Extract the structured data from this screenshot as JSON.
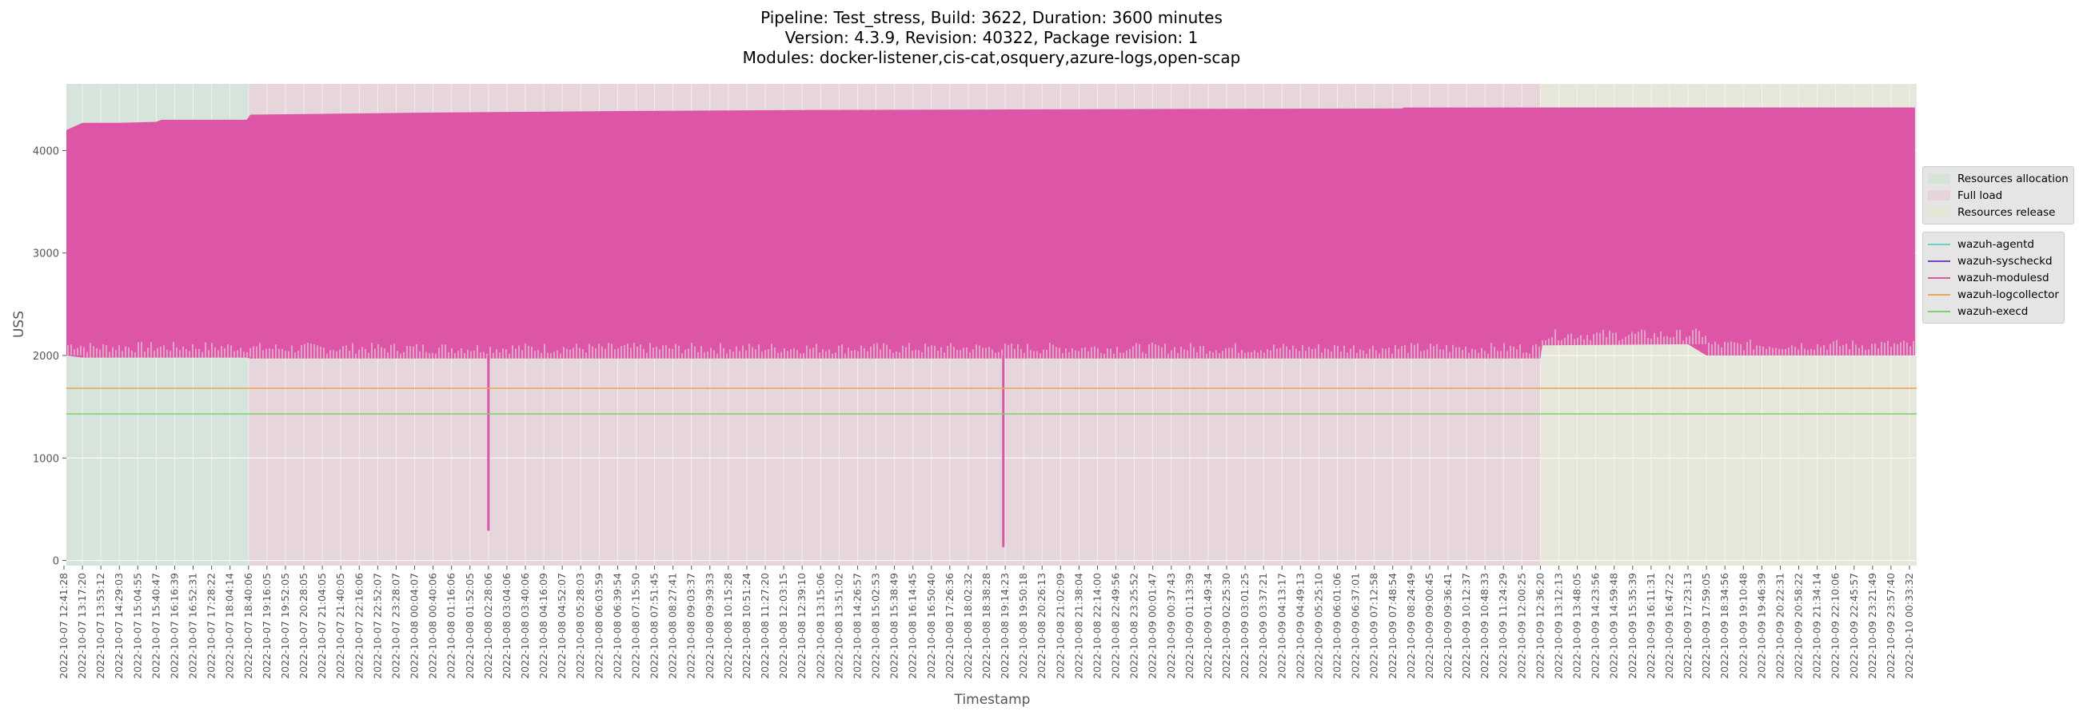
{
  "chart_title": {
    "line1": "Pipeline: Test_stress, Build: 3622, Duration: 3600 minutes",
    "line2": "Version: 4.3.9, Revision: 40322, Package revision: 1",
    "line3": "Modules: docker-listener,cis-cat,osquery,azure-logs,open-scap"
  },
  "colors": {
    "background": "#e5e5e5",
    "grid": "#ffffff",
    "phase_allocation": "#d5e3d9",
    "phase_full_load": "#e5d4d9",
    "phase_release": "#e6e6d8",
    "agentd": "#64d3c8",
    "syscheckd": "#7b3fbf",
    "modulesd": "#dd55a6",
    "logcollector": "#e8a85a",
    "execd": "#7fd06c"
  },
  "legends": {
    "phases": [
      {
        "label": "Resources allocation",
        "color": "#d5e3d9"
      },
      {
        "label": "Full load",
        "color": "#e5d4d9"
      },
      {
        "label": "Resources release",
        "color": "#e6e6d8"
      }
    ],
    "series": [
      {
        "label": "wazuh-agentd",
        "color": "#64d3c8"
      },
      {
        "label": "wazuh-syscheckd",
        "color": "#7b3fbf"
      },
      {
        "label": "wazuh-modulesd",
        "color": "#dd55a6"
      },
      {
        "label": "wazuh-logcollector",
        "color": "#e8a85a"
      },
      {
        "label": "wazuh-execd",
        "color": "#7fd06c"
      }
    ]
  },
  "chart_data": {
    "type": "line",
    "xlabel": "Timestamp",
    "ylabel": "USS",
    "ylim": [
      -50,
      4650
    ],
    "yticks": [
      0,
      1000,
      2000,
      3000,
      4000
    ],
    "grid": true,
    "legend_placement": "right",
    "x_ticks": [
      "2022-10-07 12:41:28",
      "2022-10-07 13:17:20",
      "2022-10-07 13:53:12",
      "2022-10-07 14:29:03",
      "2022-10-07 15:04:55",
      "2022-10-07 15:40:47",
      "2022-10-07 16:16:39",
      "2022-10-07 16:52:31",
      "2022-10-07 17:28:22",
      "2022-10-07 18:04:14",
      "2022-10-07 18:40:06",
      "2022-10-07 19:16:05",
      "2022-10-07 19:52:05",
      "2022-10-07 20:28:05",
      "2022-10-07 21:04:05",
      "2022-10-07 21:40:05",
      "2022-10-07 22:16:06",
      "2022-10-07 22:52:07",
      "2022-10-07 23:28:07",
      "2022-10-08 00:04:07",
      "2022-10-08 00:40:06",
      "2022-10-08 01:16:06",
      "2022-10-08 01:52:05",
      "2022-10-08 02:28:06",
      "2022-10-08 03:04:06",
      "2022-10-08 03:40:06",
      "2022-10-08 04:16:09",
      "2022-10-08 04:52:07",
      "2022-10-08 05:28:03",
      "2022-10-08 06:03:59",
      "2022-10-08 06:39:54",
      "2022-10-08 07:15:50",
      "2022-10-08 07:51:45",
      "2022-10-08 08:27:41",
      "2022-10-08 09:03:37",
      "2022-10-08 09:39:33",
      "2022-10-08 10:15:28",
      "2022-10-08 10:51:24",
      "2022-10-08 11:27:20",
      "2022-10-08 12:03:15",
      "2022-10-08 12:39:10",
      "2022-10-08 13:15:06",
      "2022-10-08 13:51:02",
      "2022-10-08 14:26:57",
      "2022-10-08 15:02:53",
      "2022-10-08 15:38:49",
      "2022-10-08 16:14:45",
      "2022-10-08 16:50:40",
      "2022-10-08 17:26:36",
      "2022-10-08 18:02:32",
      "2022-10-08 18:38:28",
      "2022-10-08 19:14:23",
      "2022-10-08 19:50:18",
      "2022-10-08 20:26:13",
      "2022-10-08 21:02:09",
      "2022-10-08 21:38:04",
      "2022-10-08 22:14:00",
      "2022-10-08 22:49:56",
      "2022-10-08 23:25:52",
      "2022-10-09 00:01:47",
      "2022-10-09 00:37:43",
      "2022-10-09 01:13:39",
      "2022-10-09 01:49:34",
      "2022-10-09 02:25:30",
      "2022-10-09 03:01:25",
      "2022-10-09 03:37:21",
      "2022-10-09 04:13:17",
      "2022-10-09 04:49:13",
      "2022-10-09 05:25:10",
      "2022-10-09 06:01:06",
      "2022-10-09 06:37:01",
      "2022-10-09 07:12:58",
      "2022-10-09 07:48:54",
      "2022-10-09 08:24:49",
      "2022-10-09 09:00:45",
      "2022-10-09 09:36:41",
      "2022-10-09 10:12:37",
      "2022-10-09 10:48:33",
      "2022-10-09 11:24:29",
      "2022-10-09 12:00:25",
      "2022-10-09 12:36:20",
      "2022-10-09 13:12:13",
      "2022-10-09 13:48:05",
      "2022-10-09 14:23:56",
      "2022-10-09 14:59:48",
      "2022-10-09 15:35:39",
      "2022-10-09 16:11:31",
      "2022-10-09 16:47:22",
      "2022-10-09 17:23:13",
      "2022-10-09 17:59:05",
      "2022-10-09 18:34:56",
      "2022-10-09 19:10:48",
      "2022-10-09 19:46:39",
      "2022-10-09 20:22:31",
      "2022-10-09 20:58:22",
      "2022-10-09 21:34:14",
      "2022-10-09 22:10:06",
      "2022-10-09 22:45:57",
      "2022-10-09 23:21:49",
      "2022-10-09 23:57:40",
      "2022-10-10 00:33:32"
    ],
    "phases": [
      {
        "name": "Resources allocation",
        "start_tick": 0,
        "end_tick": 10
      },
      {
        "name": "Full load",
        "start_tick": 10,
        "end_tick": 80
      },
      {
        "name": "Resources release",
        "start_tick": 80,
        "end_tick": 100.3
      }
    ],
    "series": [
      {
        "name": "wazuh-modulesd",
        "color": "#dd55a6",
        "kind": "oscillating",
        "points": [
          {
            "tick": 0,
            "low": 2000,
            "high": 4200
          },
          {
            "tick": 1,
            "low": 1980,
            "high": 4270
          },
          {
            "tick": 3,
            "low": 1980,
            "high": 4270
          },
          {
            "tick": 5,
            "low": 1980,
            "high": 4280
          },
          {
            "tick": 5.3,
            "low": 1980,
            "high": 4300
          },
          {
            "tick": 9.9,
            "low": 1980,
            "high": 4300
          },
          {
            "tick": 10.1,
            "low": 1970,
            "high": 4350
          },
          {
            "tick": 20,
            "low": 1970,
            "high": 4370
          },
          {
            "tick": 30,
            "low": 1970,
            "high": 4385
          },
          {
            "tick": 40,
            "low": 1970,
            "high": 4395
          },
          {
            "tick": 50,
            "low": 1970,
            "high": 4400
          },
          {
            "tick": 60,
            "low": 1970,
            "high": 4405
          },
          {
            "tick": 72.5,
            "low": 1970,
            "high": 4410
          },
          {
            "tick": 72.6,
            "low": 1970,
            "high": 4420
          },
          {
            "tick": 80,
            "low": 1970,
            "high": 4420
          },
          {
            "tick": 80.1,
            "low": 2100,
            "high": 4420
          },
          {
            "tick": 88,
            "low": 2110,
            "high": 4420
          },
          {
            "tick": 89,
            "low": 2000,
            "high": 4420
          },
          {
            "tick": 100.3,
            "low": 2000,
            "high": 4420
          }
        ],
        "dips": [
          {
            "tick": 23.0,
            "value": 290
          },
          {
            "tick": 50.9,
            "value": 130
          }
        ]
      },
      {
        "name": "wazuh-logcollector",
        "color": "#e8a85a",
        "kind": "flat",
        "value": 1680
      },
      {
        "name": "wazuh-execd",
        "color": "#7fd06c",
        "kind": "flat",
        "value": 1430
      },
      {
        "name": "wazuh-agentd",
        "color": "#64d3c8",
        "kind": "none"
      },
      {
        "name": "wazuh-syscheckd",
        "color": "#7b3fbf",
        "kind": "none"
      }
    ]
  }
}
